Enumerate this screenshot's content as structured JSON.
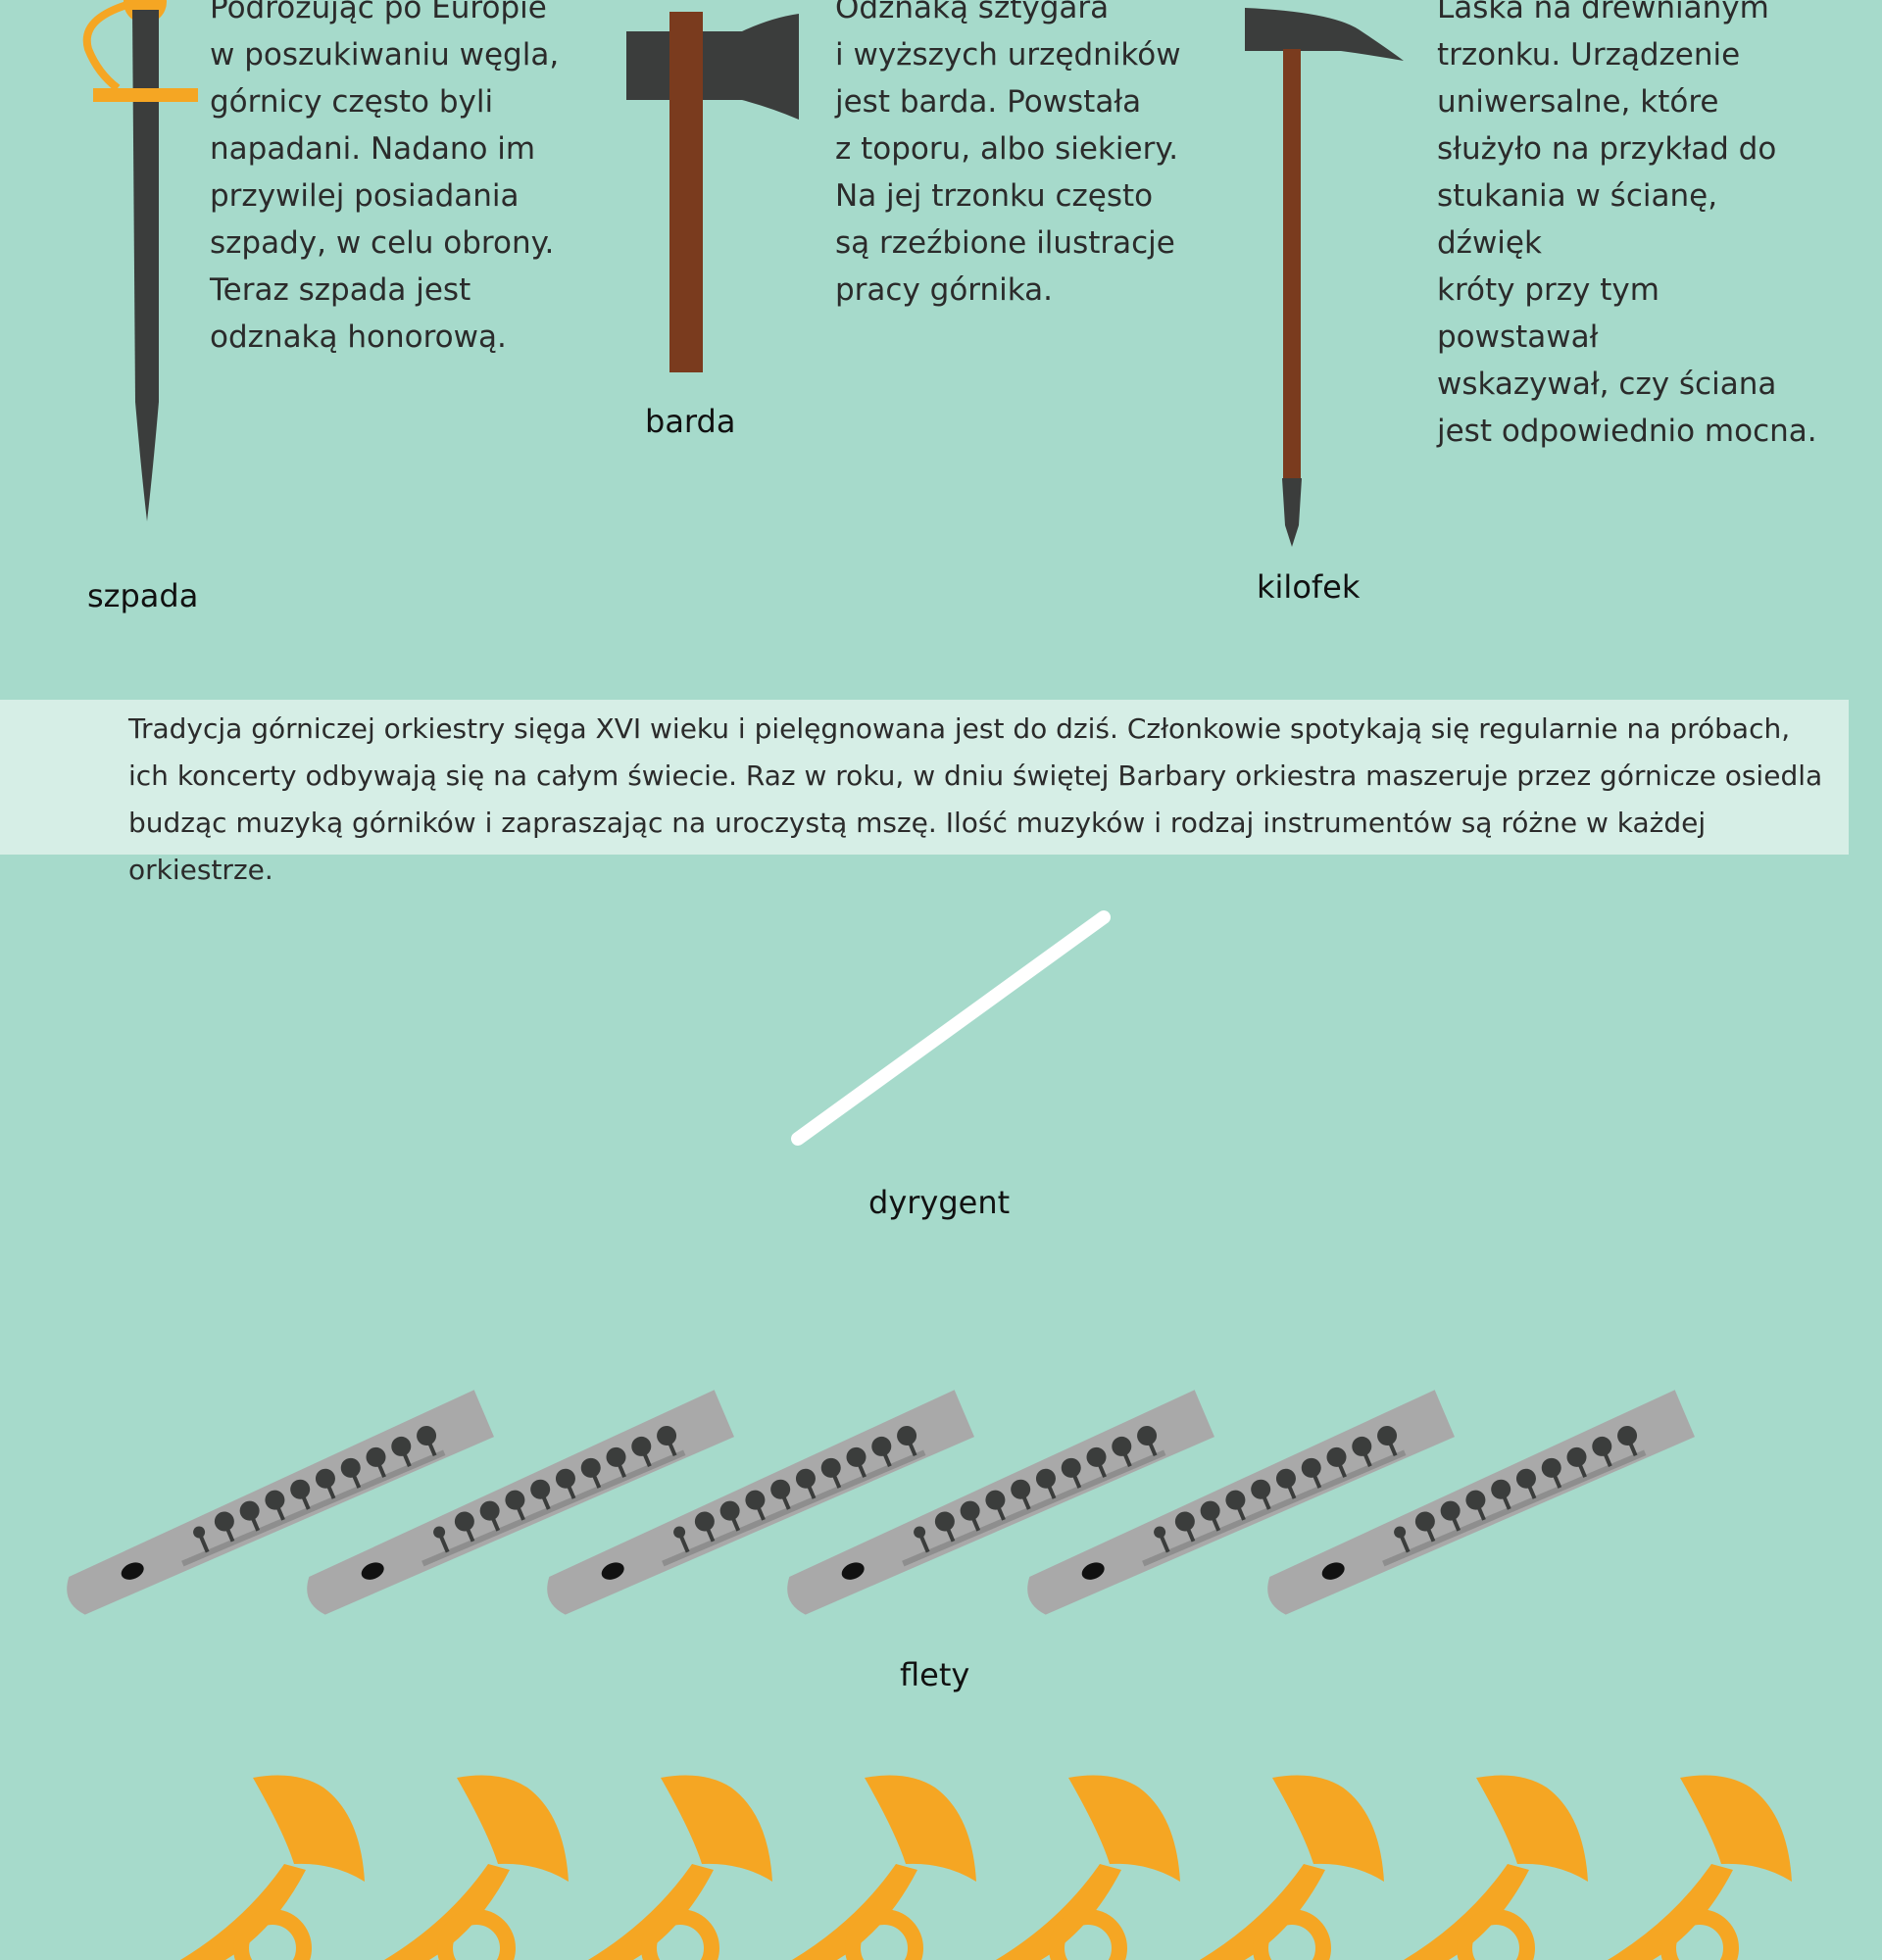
{
  "tools": {
    "szpada": {
      "label": "szpada",
      "description": "Podróżując po Europie\nw poszukiwaniu węgla,\ngórnicy często byli\nnapadani. Nadano im\nprzywilej posiadania\nszpady, w celu obrony.\nTeraz szpada jest\nodznaką honorową."
    },
    "barda": {
      "label": "barda",
      "description": "Odznaką sztygara\ni wyższych urzędników\njest barda. Powstała\nz toporu, albo siekiery.\nNa jej trzonku często\nsą rzeźbione ilustracje\npracy górnika."
    },
    "kilofek": {
      "label": "kilofek",
      "description": "Laska na drewnianym\ntrzonku. Urządzenie\nuniwersalne, które\nsłużyło na przykład do\nstukania w ścianę, dźwięk\nkróty przy tym powstawał\nwskazywał, czy ściana\njest odpowiednio mocna."
    }
  },
  "orchestra": {
    "text": "Tradycja górniczej orkiestry sięga XVI wieku i pielęgnowana jest do dziś. Członkowie spotykają się regularnie na próbach,\nich koncerty odbywają się na całym świecie. Raz w roku, w dniu świętej Barbary orkiestra maszeruje przez górnicze osiedla\nbudząc muzyką górników i zapraszając na uroczystą mszę. Ilość muzyków i rodzaj instrumentów są różne w każdej orkiestrze."
  },
  "instruments": {
    "conductor_label": "dyrygent",
    "flutes_label": "flety",
    "flute_count": 6,
    "horn_count": 8
  },
  "colors": {
    "background": "#a6dacb",
    "band": "#d6eee6",
    "dark_metal": "#3b3d3c",
    "wood": "#7a3b1e",
    "gold": "#f5a623",
    "flute_body": "#a9a9a9",
    "baton": "#ffffff"
  }
}
